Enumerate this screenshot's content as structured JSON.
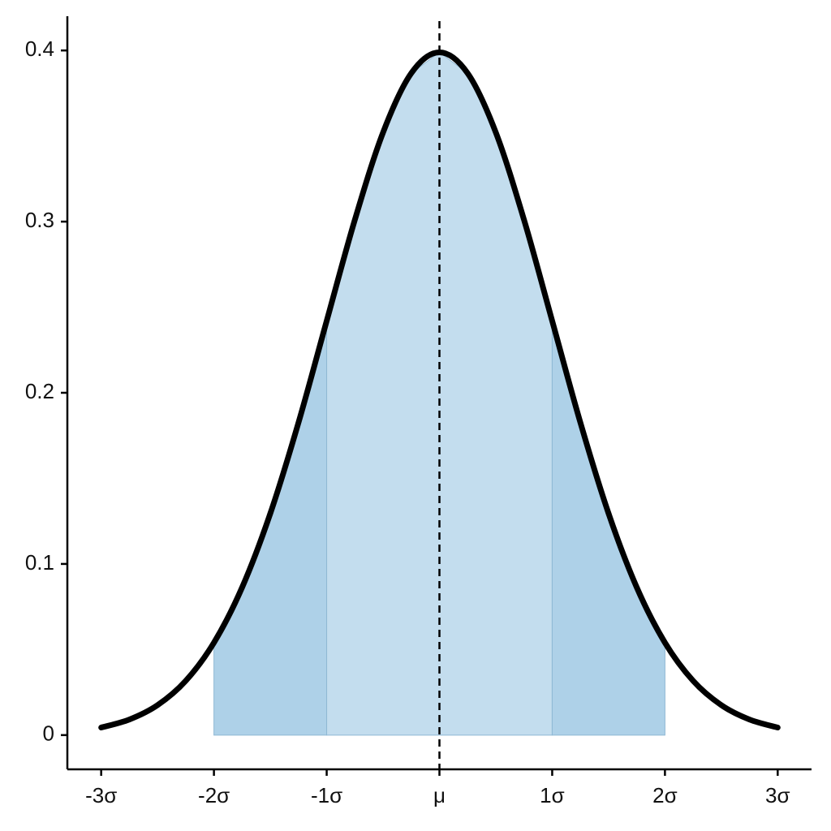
{
  "chart_data": {
    "type": "line",
    "x": [
      -3,
      -2.75,
      -2.5,
      -2.25,
      -2,
      -1.75,
      -1.5,
      -1.25,
      -1,
      -0.75,
      -0.5,
      -0.25,
      0,
      0.25,
      0.5,
      0.75,
      1,
      1.25,
      1.5,
      1.75,
      2,
      2.25,
      2.5,
      2.75,
      3
    ],
    "values": [
      0.0044,
      0.0091,
      0.0175,
      0.0317,
      0.054,
      0.0863,
      0.1295,
      0.1826,
      0.242,
      0.3011,
      0.3521,
      0.3867,
      0.3989,
      0.3867,
      0.3521,
      0.3011,
      0.242,
      0.1826,
      0.1295,
      0.0863,
      0.054,
      0.0317,
      0.0175,
      0.0091,
      0.0044
    ],
    "color": "#000000",
    "bands": [
      {
        "from": -2,
        "to": -1,
        "color": "#aed1e8"
      },
      {
        "from": -1,
        "to": 1,
        "color": "#c3ddee"
      },
      {
        "from": 1,
        "to": 2,
        "color": "#aed1e8"
      }
    ],
    "vline": 0,
    "xlim": [
      -3.3,
      3.3
    ],
    "xticks": [
      {
        "value": -3,
        "label": "-3σ"
      },
      {
        "value": -2,
        "label": "-2σ"
      },
      {
        "value": -1,
        "label": "-1σ"
      },
      {
        "value": 0,
        "label": "μ"
      },
      {
        "value": 1,
        "label": "1σ"
      },
      {
        "value": 2,
        "label": "2σ"
      },
      {
        "value": 3,
        "label": "3σ"
      }
    ],
    "ylim": [
      -0.02,
      0.42
    ],
    "yticks": [
      0,
      0.1,
      0.2,
      0.3,
      0.4
    ]
  }
}
